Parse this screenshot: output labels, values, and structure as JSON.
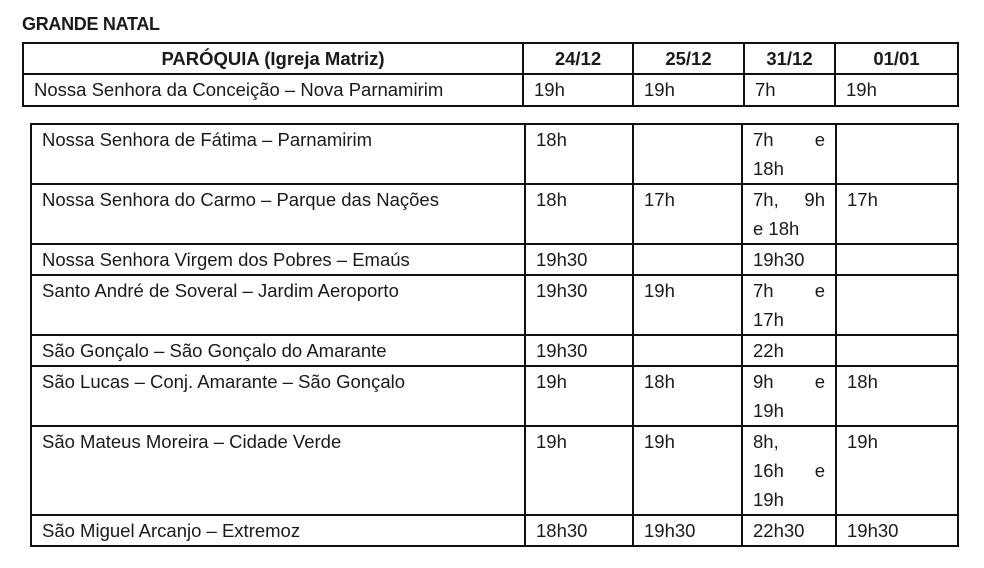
{
  "title": "GRANDE NATAL",
  "headers": [
    "PARÓQUIA (Igreja Matriz)",
    "24/12",
    "25/12",
    "31/12",
    "01/01"
  ],
  "first_row": {
    "parish": "Nossa Senhora da Conceição – Nova Parnamirim",
    "d2412": "19h",
    "d2512": "19h",
    "d3112": "7h",
    "d0101": "19h"
  },
  "rows": [
    {
      "parish": "Nossa Senhora de Fátima – Parnamirim",
      "d2412": "18h",
      "d2512": "",
      "d3112": [
        "7h e",
        "18h"
      ],
      "d0101": ""
    },
    {
      "parish": "Nossa Senhora do Carmo – Parque das Nações",
      "d2412": "18h",
      "d2512": "17h",
      "d3112": [
        "7h, 9h",
        "e 18h"
      ],
      "d0101": "17h"
    },
    {
      "parish": "Nossa Senhora Virgem dos Pobres – Emaús",
      "d2412": "19h30",
      "d2512": "",
      "d3112": [
        "19h30"
      ],
      "d0101": ""
    },
    {
      "parish": "Santo André de Soveral – Jardim Aeroporto",
      "d2412": "19h30",
      "d2512": "19h",
      "d3112": [
        "7h e",
        "17h"
      ],
      "d0101": ""
    },
    {
      "parish": "São Gonçalo – São Gonçalo do Amarante",
      "d2412": "19h30",
      "d2512": "",
      "d3112": [
        "22h"
      ],
      "d0101": ""
    },
    {
      "parish": "São Lucas – Conj. Amarante – São Gonçalo",
      "d2412": "19h",
      "d2512": "18h",
      "d3112": [
        "9h e",
        "19h"
      ],
      "d0101": "18h"
    },
    {
      "parish": "São Mateus Moreira – Cidade Verde",
      "d2412": "19h",
      "d2512": "19h",
      "d3112": [
        "8h,",
        "16h e",
        "19h"
      ],
      "d0101": "19h"
    },
    {
      "parish": "São Miguel Arcanjo – Extremoz",
      "d2412": "18h30",
      "d2512": "19h30",
      "d3112": [
        "22h30"
      ],
      "d0101": "19h30"
    }
  ]
}
